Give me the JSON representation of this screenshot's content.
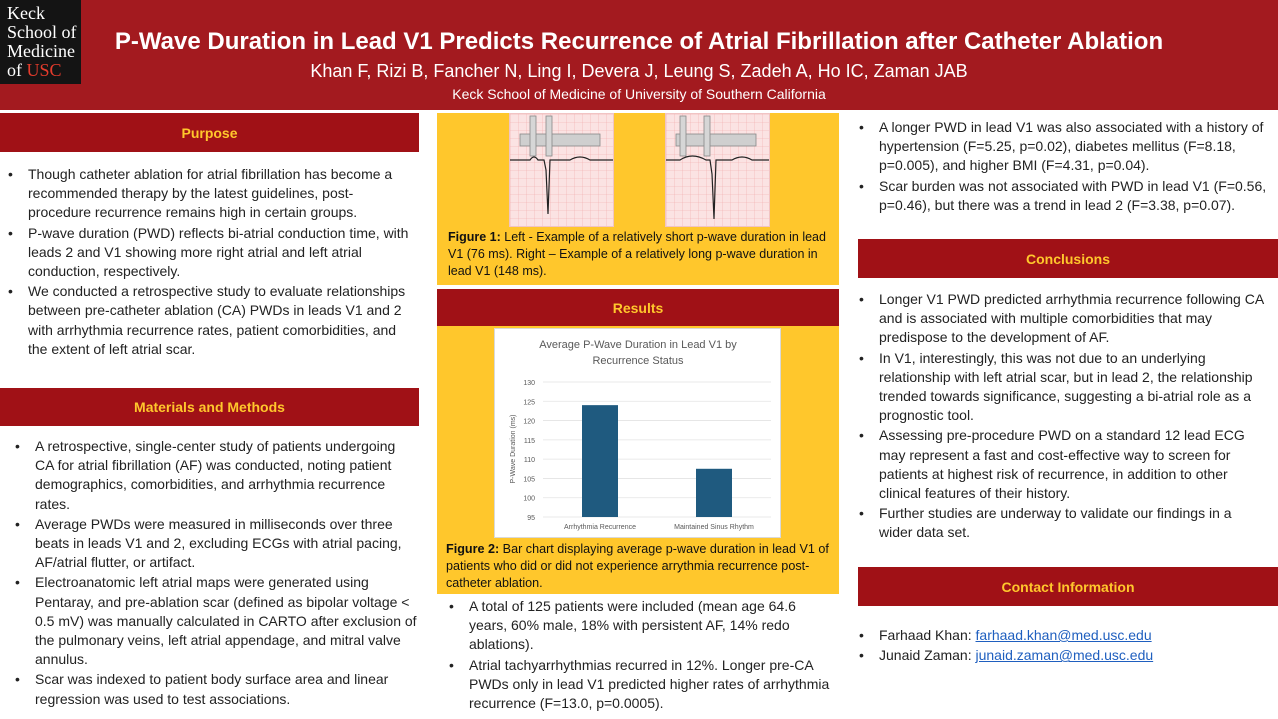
{
  "logo": {
    "line1": "Keck",
    "line2": "School of",
    "line3": "Medicine",
    "line4_pre": "of ",
    "line4_usc": "USC"
  },
  "header": {
    "title": "P-Wave Duration in Lead V1 Predicts Recurrence of Atrial Fibrillation after Catheter Ablation",
    "authors": "Khan F, Rizi B, Fancher N, Ling I, Devera J, Leung S, Zadeh A, Ho IC, Zaman JAB",
    "affiliation": "Keck School of Medicine of University of Southern California"
  },
  "purpose": {
    "heading": "Purpose",
    "items": [
      "Though catheter ablation for atrial fibrillation has become a recommended therapy by the latest guidelines, post-procedure recurrence remains high in certain groups.",
      "P-wave duration (PWD) reflects bi-atrial conduction time, with leads 2 and V1 showing more right atrial and left atrial conduction, respectively.",
      "We conducted a retrospective study to evaluate relationships between pre-catheter ablation (CA) PWDs in leads V1 and 2 with arrhythmia recurrence rates, patient comorbidities, and the extent of left atrial scar."
    ]
  },
  "methods": {
    "heading": "Materials and Methods",
    "items": [
      "A retrospective, single-center study of patients undergoing CA for atrial fibrillation (AF) was conducted, noting patient demographics, comorbidities, and arrhythmia recurrence rates.",
      "Average PWDs were measured in milliseconds over three beats in leads V1 and 2, excluding ECGs with atrial pacing, AF/atrial flutter, or artifact.",
      "Electroanatomic left atrial maps were generated using Pentaray, and pre-ablation scar (defined as bipolar voltage < 0.5 mV) was manually calculated in CARTO after exclusion of the pulmonary veins, left atrial appendage, and mitral valve annulus.",
      "Scar was indexed to patient body surface area and linear regression was used to test associations."
    ]
  },
  "figure1": {
    "label": "Figure 1:",
    "text": " Left - Example of a relatively short p-wave duration in lead V1 (76 ms). Right – Example of a relatively long p-wave duration in lead V1 (148 ms)."
  },
  "results": {
    "heading": "Results",
    "items": [
      "A total of 125 patients were included (mean age 64.6 years, 60% male, 18% with persistent AF, 14% redo ablations).",
      "Atrial tachyarrhythmias recurred in 12%. Longer pre-CA PWDs only in lead V1 predicted higher rates of arrhythmia recurrence (F=13.0, p=0.0005)."
    ],
    "more_items": [
      "A longer PWD in lead V1 was also associated with a history of hypertension (F=5.25, p=0.02), diabetes mellitus (F=8.18, p=0.005), and higher BMI (F=4.31, p=0.04).",
      "Scar burden was not associated with PWD in lead V1 (F=0.56, p=0.46), but there was a trend in lead 2 (F=3.38, p=0.07)."
    ]
  },
  "figure2": {
    "label": "Figure 2:",
    "text": " Bar chart displaying average p-wave duration in lead V1 of patients who did or did not experience arrythmia recurrence post-catheter ablation."
  },
  "chart_data": {
    "type": "bar",
    "title": "Average P-Wave Duration in Lead V1 by Recurrence Status",
    "title_line1": "Average P-Wave Duration in Lead V1 by",
    "title_line2": "Recurrence Status",
    "categories": [
      "Arrhythmia Recurrence",
      "Maintained Sinus Rhythm"
    ],
    "values": [
      124,
      107.5
    ],
    "xlabel": "",
    "ylabel": "P-Wave Duration (ms)",
    "ylim": [
      95,
      130
    ],
    "yticks": [
      95,
      100,
      105,
      110,
      115,
      120,
      125,
      130
    ],
    "bar_color": "#1f5a7f",
    "grid": true
  },
  "conclusions": {
    "heading": "Conclusions",
    "items": [
      "Longer V1 PWD predicted arrhythmia recurrence following CA and is associated with multiple comorbidities that may predispose to the development of AF.",
      "In V1, interestingly, this was not due to an underlying relationship with left atrial scar, but in lead 2, the relationship trended towards significance, suggesting a bi-atrial role as a prognostic tool.",
      "Assessing pre-procedure PWD on a standard 12 lead ECG may represent a fast and cost-effective way to screen for patients at highest risk of recurrence, in addition to other clinical features of their history.",
      "Further studies are underway to validate our findings in a wider data set."
    ]
  },
  "contact": {
    "heading": "Contact Information",
    "people": [
      {
        "name": "Farhaad Khan: ",
        "email": "farhaad.khan@med.usc.edu"
      },
      {
        "name": "Junaid Zaman: ",
        "email": "junaid.zaman@med.usc.edu"
      }
    ]
  },
  "colors": {
    "header": "#a31a1f",
    "section_bar": "#a01116",
    "gold": "#ffc72c",
    "heading_text": "#ffc72c"
  }
}
